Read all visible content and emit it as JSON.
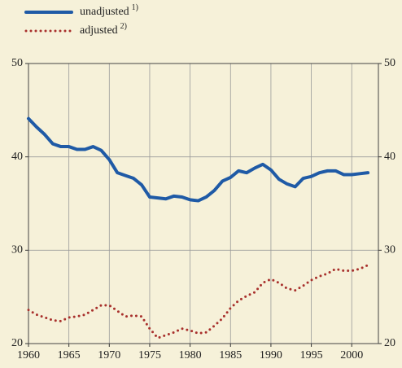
{
  "chart_data": {
    "type": "line",
    "x": [
      1960,
      1961,
      1962,
      1963,
      1964,
      1965,
      1966,
      1967,
      1968,
      1969,
      1970,
      1971,
      1972,
      1973,
      1974,
      1975,
      1976,
      1977,
      1978,
      1979,
      1980,
      1981,
      1982,
      1983,
      1984,
      1985,
      1986,
      1987,
      1988,
      1989,
      1990,
      1991,
      1992,
      1993,
      1994,
      1995,
      1996,
      1997,
      1998,
      1999,
      2000,
      2001,
      2002
    ],
    "series": [
      {
        "name": "unadjusted",
        "note": "1)",
        "color": "#1f5aa6",
        "style": "solid",
        "values": [
          44.1,
          43.2,
          42.4,
          41.4,
          41.1,
          41.1,
          40.8,
          40.8,
          41.1,
          40.7,
          39.7,
          38.3,
          38.0,
          37.7,
          37.0,
          35.7,
          35.6,
          35.5,
          35.8,
          35.7,
          35.4,
          35.3,
          35.7,
          36.4,
          37.4,
          37.8,
          38.5,
          38.3,
          38.8,
          39.2,
          38.6,
          37.6,
          37.1,
          36.8,
          37.7,
          37.9,
          38.3,
          38.5,
          38.5,
          38.1,
          38.1,
          38.2,
          38.3
        ]
      },
      {
        "name": "adjusted",
        "note": "2)",
        "color": "#a8302c",
        "style": "dotted",
        "values": [
          23.6,
          23.1,
          22.8,
          22.5,
          22.4,
          22.8,
          22.9,
          23.1,
          23.6,
          24.1,
          24.1,
          23.5,
          22.9,
          23.0,
          22.9,
          21.6,
          20.6,
          20.9,
          21.2,
          21.6,
          21.4,
          21.1,
          21.2,
          21.9,
          22.7,
          23.8,
          24.6,
          25.1,
          25.5,
          26.5,
          26.9,
          26.5,
          25.9,
          25.7,
          26.2,
          26.8,
          27.2,
          27.5,
          28.0,
          27.8,
          27.8,
          28.0,
          28.4
        ]
      }
    ],
    "xlim": [
      1960,
      2003.3
    ],
    "xticks": [
      1960,
      1965,
      1970,
      1975,
      1980,
      1985,
      1990,
      1995,
      2000
    ],
    "ylim": [
      20,
      50
    ],
    "yticks": [
      20,
      30,
      40,
      50
    ],
    "y2lim": [
      20,
      50
    ],
    "y2ticks": [
      20,
      30,
      40,
      50
    ],
    "grid": true
  }
}
